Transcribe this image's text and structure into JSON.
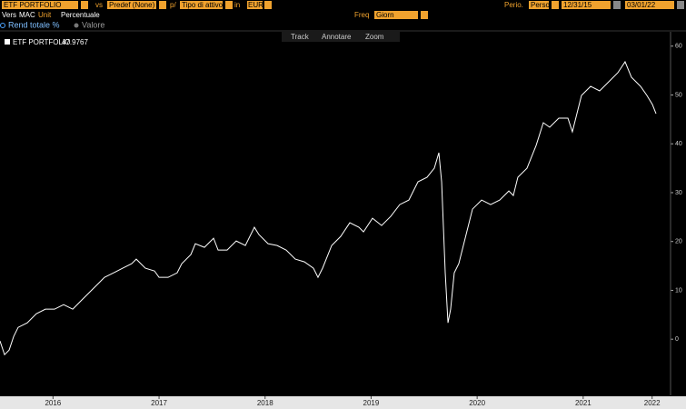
{
  "ui": {
    "security": "ETF PORTFOLIO",
    "vs": "vs",
    "benchmark": "Predef (None)",
    "per": "p/",
    "asset_type": "Tipo di attivo",
    "in": "in",
    "currency": "EUR",
    "period_label": "Perio.",
    "period": "Perso",
    "start_date": "12/31/15",
    "end_date": "03/01/22",
    "vers": "Vers",
    "mac": "MAC",
    "unit_label": "Unit",
    "unit": "Percentuale",
    "freq_label": "Freq",
    "freq": "Giorn",
    "radio_total_return": "Rend totale %",
    "radio_value": "Valore",
    "tools": [
      "Track",
      "Annotare",
      "Zoom"
    ]
  },
  "chart_data": {
    "type": "line",
    "last_value": 47.9767,
    "xlim": [
      2016,
      2022.324
    ],
    "xticks": [
      {
        "value": 2016.5,
        "label": "2016"
      },
      {
        "value": 2017.5,
        "label": "2017"
      },
      {
        "value": 2018.5,
        "label": "2018"
      },
      {
        "value": 2019.5,
        "label": "2019"
      },
      {
        "value": 2020.5,
        "label": "2020"
      },
      {
        "value": 2021.5,
        "label": "2021"
      },
      {
        "value": 2022.15,
        "label": "2022"
      }
    ],
    "ylim": [
      -11.5,
      62
    ],
    "yticks": [
      0,
      10,
      20,
      30,
      40,
      50,
      60
    ],
    "x": [
      2016.0,
      2016.043,
      2016.086,
      2016.129,
      2016.171,
      2016.257,
      2016.343,
      2016.428,
      2016.514,
      2016.6,
      2016.686,
      2016.771,
      2016.857,
      2016.943,
      2016.985,
      2017.071,
      2017.157,
      2017.242,
      2017.285,
      2017.371,
      2017.457,
      2017.5,
      2017.585,
      2017.671,
      2017.714,
      2017.8,
      2017.842,
      2017.928,
      2018.014,
      2018.057,
      2018.142,
      2018.228,
      2018.314,
      2018.399,
      2018.442,
      2018.528,
      2018.614,
      2018.699,
      2018.785,
      2018.871,
      2018.956,
      2018.999,
      2019.042,
      2019.128,
      2019.213,
      2019.299,
      2019.385,
      2019.428,
      2019.513,
      2019.599,
      2019.685,
      2019.77,
      2019.856,
      2019.942,
      2020.027,
      2020.096,
      2020.139,
      2020.165,
      2020.182,
      2020.199,
      2020.225,
      2020.25,
      2020.284,
      2020.327,
      2020.37,
      2020.413,
      2020.456,
      2020.542,
      2020.627,
      2020.713,
      2020.799,
      2020.841,
      2020.884,
      2020.97,
      2021.056,
      2021.124,
      2021.184,
      2021.27,
      2021.356,
      2021.398,
      2021.484,
      2021.57,
      2021.655,
      2021.741,
      2021.827,
      2021.895,
      2021.955,
      2022.041,
      2022.101,
      2022.153,
      2022.187
    ],
    "series": [
      {
        "name": "ETF PORTFOLIO",
        "color": "#ffffff",
        "values": [
          -0.37,
          -3.17,
          -2.23,
          0.56,
          2.42,
          3.35,
          5.21,
          6.15,
          6.15,
          7.08,
          6.15,
          8.01,
          9.87,
          11.73,
          12.66,
          13.59,
          14.53,
          15.46,
          16.39,
          14.53,
          13.97,
          12.66,
          12.66,
          13.59,
          15.46,
          17.32,
          19.55,
          18.81,
          20.67,
          18.25,
          18.25,
          20.11,
          19.18,
          22.91,
          21.42,
          19.55,
          19.18,
          18.25,
          16.39,
          15.83,
          14.53,
          12.66,
          14.53,
          19.18,
          21.04,
          23.84,
          22.91,
          21.97,
          24.77,
          23.28,
          25.14,
          27.56,
          28.49,
          32.22,
          33.15,
          35.01,
          38.18,
          32.22,
          22.91,
          13.59,
          3.35,
          6.15,
          13.59,
          15.46,
          19.18,
          22.91,
          26.63,
          28.49,
          27.56,
          28.49,
          30.35,
          29.42,
          33.15,
          35.01,
          39.66,
          44.32,
          43.39,
          45.25,
          45.25,
          42.46,
          49.91,
          51.77,
          50.84,
          52.7,
          54.56,
          56.8,
          53.63,
          51.77,
          49.91,
          48.04,
          46.18
        ]
      }
    ]
  }
}
